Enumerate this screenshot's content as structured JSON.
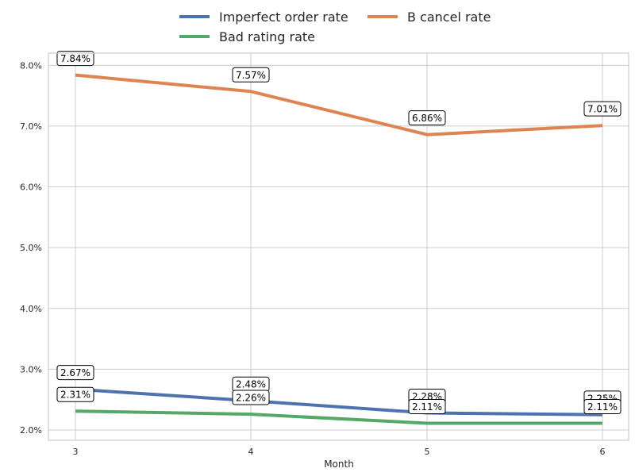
{
  "chart_data": {
    "type": "line",
    "xlabel": "Month",
    "ylabel": "",
    "x": [
      3,
      4,
      5,
      6
    ],
    "xticks": [
      "3",
      "4",
      "5",
      "6"
    ],
    "ylim": [
      1.83,
      8.2
    ],
    "yticks": [
      "2.0%",
      "3.0%",
      "4.0%",
      "5.0%",
      "6.0%",
      "7.0%",
      "8.0%"
    ],
    "ytick_values": [
      2,
      3,
      4,
      5,
      6,
      7,
      8
    ],
    "grid": true,
    "legend": "top-center",
    "series": [
      {
        "name": "Imperfect order rate",
        "color": "#4c72b0",
        "values": [
          2.67,
          2.48,
          2.28,
          2.25
        ],
        "labels": [
          "2.67%",
          "2.48%",
          "2.28%",
          "2.25%"
        ]
      },
      {
        "name": "B cancel rate",
        "color": "#dd8452",
        "values": [
          7.84,
          7.57,
          6.86,
          7.01
        ],
        "labels": [
          "7.84%",
          "7.57%",
          "6.86%",
          "7.01%"
        ]
      },
      {
        "name": "Bad rating rate",
        "color": "#55a868",
        "values": [
          2.31,
          2.26,
          2.11,
          2.11
        ],
        "labels": [
          "2.31%",
          "2.26%",
          "2.11%",
          "2.11%"
        ]
      }
    ]
  }
}
